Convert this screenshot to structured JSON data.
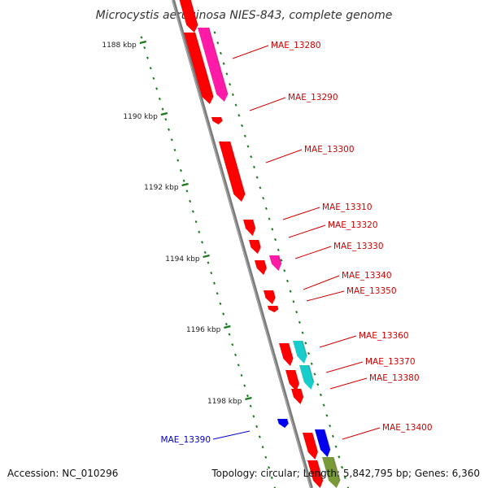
{
  "title": "Microcystis aeruginosa NIES-843, complete genome",
  "accession": "Accession: NC_010296",
  "summary": "Topology: circular; Length: 5,842,795 bp; Genes: 6,360",
  "colors": {
    "backbone": "#7a7a7a",
    "tick": "#1a7a1a",
    "gene_red": "#ff0000",
    "gene_pink": "#ff1aa8",
    "gene_cyan": "#19cccc",
    "gene_blue": "#0000ee",
    "gene_olive": "#7a9a3a",
    "label_red": "#d40000",
    "label_blue": "#0000cc"
  },
  "scale_ticks": [
    {
      "kbp": 1188,
      "label": "1188 kbp"
    },
    {
      "kbp": 1190,
      "label": "1190 kbp"
    },
    {
      "kbp": 1192,
      "label": "1192 kbp"
    },
    {
      "kbp": 1194,
      "label": "1194 kbp"
    },
    {
      "kbp": 1196,
      "label": "1196 kbp"
    },
    {
      "kbp": 1198,
      "label": "1198 kbp"
    }
  ],
  "gene_labels": [
    {
      "name": "MAE_13280",
      "color": "label_red"
    },
    {
      "name": "MAE_13290",
      "color": "label_red"
    },
    {
      "name": "MAE_13300",
      "color": "label_red"
    },
    {
      "name": "MAE_13310",
      "color": "label_red"
    },
    {
      "name": "MAE_13320",
      "color": "label_red"
    },
    {
      "name": "MAE_13330",
      "color": "label_red"
    },
    {
      "name": "MAE_13340",
      "color": "label_red"
    },
    {
      "name": "MAE_13350",
      "color": "label_red"
    },
    {
      "name": "MAE_13360",
      "color": "label_red"
    },
    {
      "name": "MAE_13370",
      "color": "label_red"
    },
    {
      "name": "MAE_13380",
      "color": "label_red"
    },
    {
      "name": "MAE_13400",
      "color": "label_red"
    },
    {
      "name": "MAE_13390",
      "color": "label_blue"
    }
  ]
}
